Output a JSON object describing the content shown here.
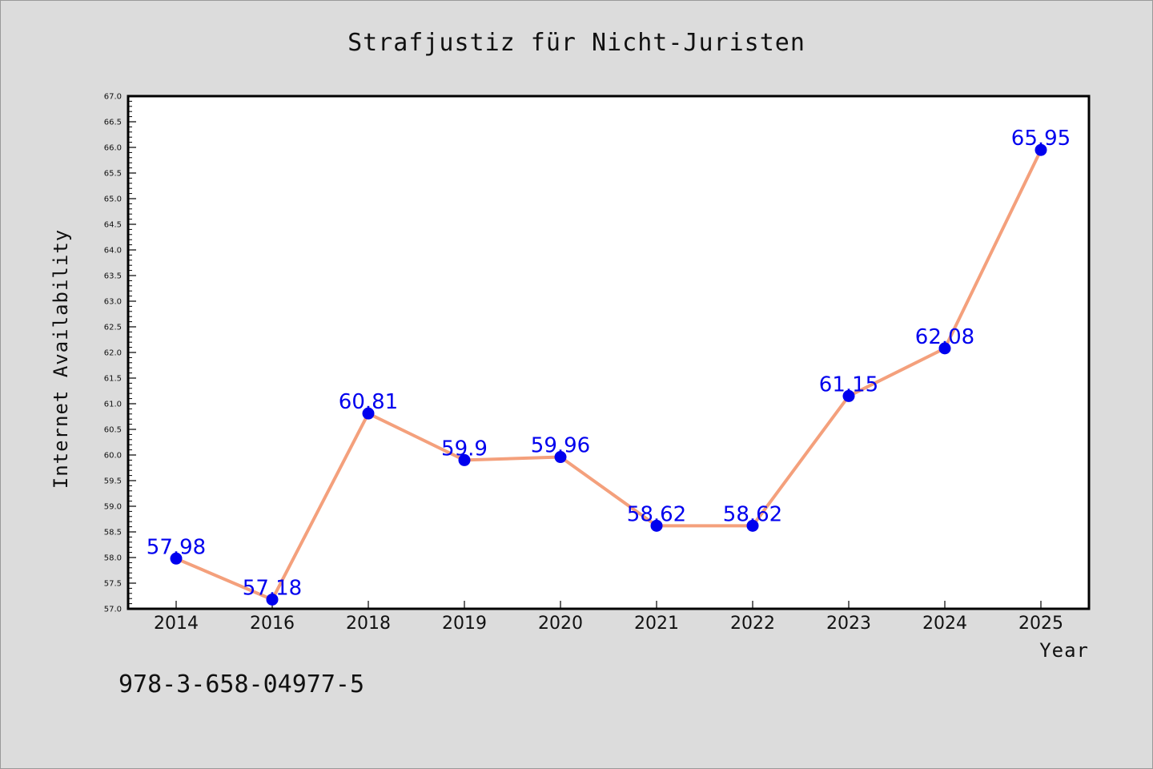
{
  "chart_data": {
    "type": "line",
    "title": "Strafjustiz für Nicht-Juristen",
    "xlabel": "Year",
    "ylabel": "Internet Availability",
    "categories": [
      "2014",
      "2016",
      "2018",
      "2019",
      "2020",
      "2021",
      "2022",
      "2023",
      "2024",
      "2025"
    ],
    "series": [
      {
        "values": [
          57.98,
          57.18,
          60.81,
          59.9,
          59.96,
          58.62,
          58.62,
          61.15,
          62.08,
          65.95
        ]
      }
    ],
    "data_labels": [
      "57.98",
      "57.18",
      "60.81",
      "59.9",
      "59.96",
      "58.62",
      "58.62",
      "61.15",
      "62.08",
      "65.95"
    ],
    "ylim": [
      57.0,
      67.0
    ],
    "y_major_step": 0.5,
    "y_ticks": [
      "57.0",
      "57.5",
      "58.0",
      "58.5",
      "59.0",
      "59.5",
      "60.0",
      "60.5",
      "61.0",
      "61.5",
      "62.0",
      "62.5",
      "63.0",
      "63.5",
      "64.0",
      "64.5",
      "65.0",
      "65.5",
      "66.0",
      "66.5",
      "67.0"
    ],
    "grid": false,
    "legend": "none",
    "line_color": "#f4a07c",
    "marker_color": "#0000ee",
    "label_color": "#0000ee"
  },
  "footer_text": "978-3-658-04977-5",
  "colors": {
    "background": "#dcdcdc",
    "plot_background": "#ffffff",
    "axis": "#000000"
  }
}
